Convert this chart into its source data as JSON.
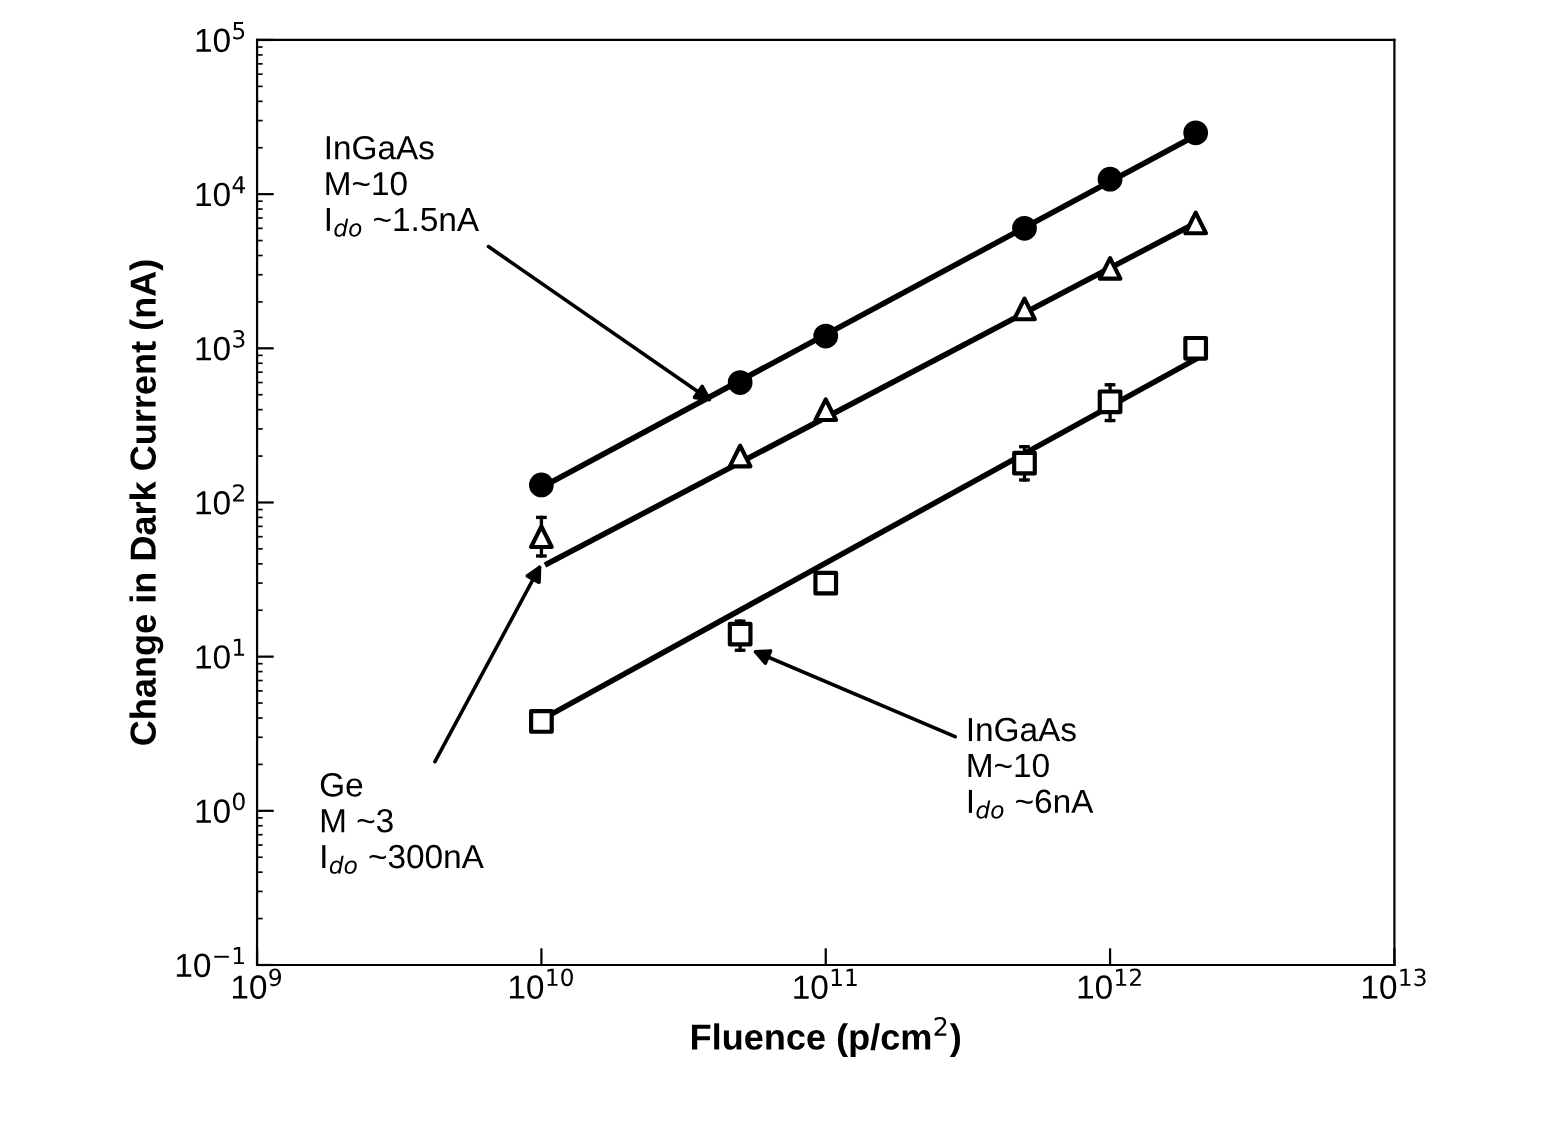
{
  "chart_data": {
    "type": "scatter",
    "xlabel": "Fluence (p/cm$^{2}$)",
    "ylabel": "Change in Dark Current (nA)",
    "log": "xy",
    "xlim": [
      1000000000.0,
      10000000000000.0
    ],
    "ylim": [
      0.1,
      100000
    ],
    "xticks": [
      {
        "value": 1000000000.0,
        "label": "10$^{9}$"
      },
      {
        "value": 10000000000.0,
        "label": "10$^{10}$"
      },
      {
        "value": 100000000000.0,
        "label": "10$^{11}$"
      },
      {
        "value": 1000000000000.0,
        "label": "10$^{12}$"
      },
      {
        "value": 10000000000000.0,
        "label": "10$^{13}$"
      }
    ],
    "yticks": [
      {
        "value": 0.1,
        "label": "10$^{−1}$"
      },
      {
        "value": 1,
        "label": "10$^{0}$"
      },
      {
        "value": 10,
        "label": "10$^{1}$"
      },
      {
        "value": 100,
        "label": "10$^{2}$"
      },
      {
        "value": 1000,
        "label": "10$^{3}$"
      },
      {
        "value": 10000,
        "label": "10$^{4}$"
      },
      {
        "value": 100000,
        "label": "10$^{5}$"
      }
    ],
    "x": [
      10000000000.0,
      50000000000.0,
      100000000000.0,
      500000000000.0,
      1000000000000.0,
      2000000000000.0
    ],
    "grid": false,
    "legend": false,
    "series": [
      {
        "marker": "circle",
        "color": "#000000",
        "values": [
          130,
          600,
          1200,
          6000,
          12500,
          25000
        ]
      },
      {
        "marker": "triangle",
        "color": "#000000",
        "values": [
          60,
          200,
          400,
          1800,
          3300,
          6500
        ],
        "errors": [
          [
            45,
            80
          ],
          null,
          null,
          null,
          null,
          null
        ]
      },
      {
        "marker": "square",
        "color": "#000000",
        "values": [
          3.8,
          14,
          30,
          180,
          450,
          1000
        ],
        "errors": [
          null,
          [
            11,
            17
          ],
          null,
          [
            140,
            230
          ],
          [
            340,
            580
          ],
          null
        ]
      },
      {
        "type": "line",
        "marker": "none",
        "line_style": "solid",
        "color": "#000000",
        "x": [
          10000000000.0,
          2000000000000.0
        ],
        "values": [
          125,
          24000
        ]
      },
      {
        "type": "line",
        "marker": "none",
        "line_style": "solid",
        "color": "#000000",
        "x": [
          10500000000.0,
          2000000000000.0
        ],
        "values": [
          40,
          6500
        ]
      },
      {
        "type": "line",
        "marker": "none",
        "line_style": "solid",
        "color": "#000000",
        "x": [
          10500000000.0,
          2000000000000.0
        ],
        "values": [
          4.1,
          850
        ]
      }
    ],
    "annotations": [
      {
        "text": "InGaAs\nM~10\nI$_{do}$ ~1.5nA",
        "x": 40000000000.0,
        "y": 450
      },
      {
        "text": "Ge\nM ~3\nI$_{do}$ ~300nA",
        "x": 10000000000.0,
        "y": 40
      },
      {
        "text": "InGaAs\nM~10\nI$_{do}$ ~6nA",
        "x": 55000000000.0,
        "y": 11
      }
    ]
  }
}
